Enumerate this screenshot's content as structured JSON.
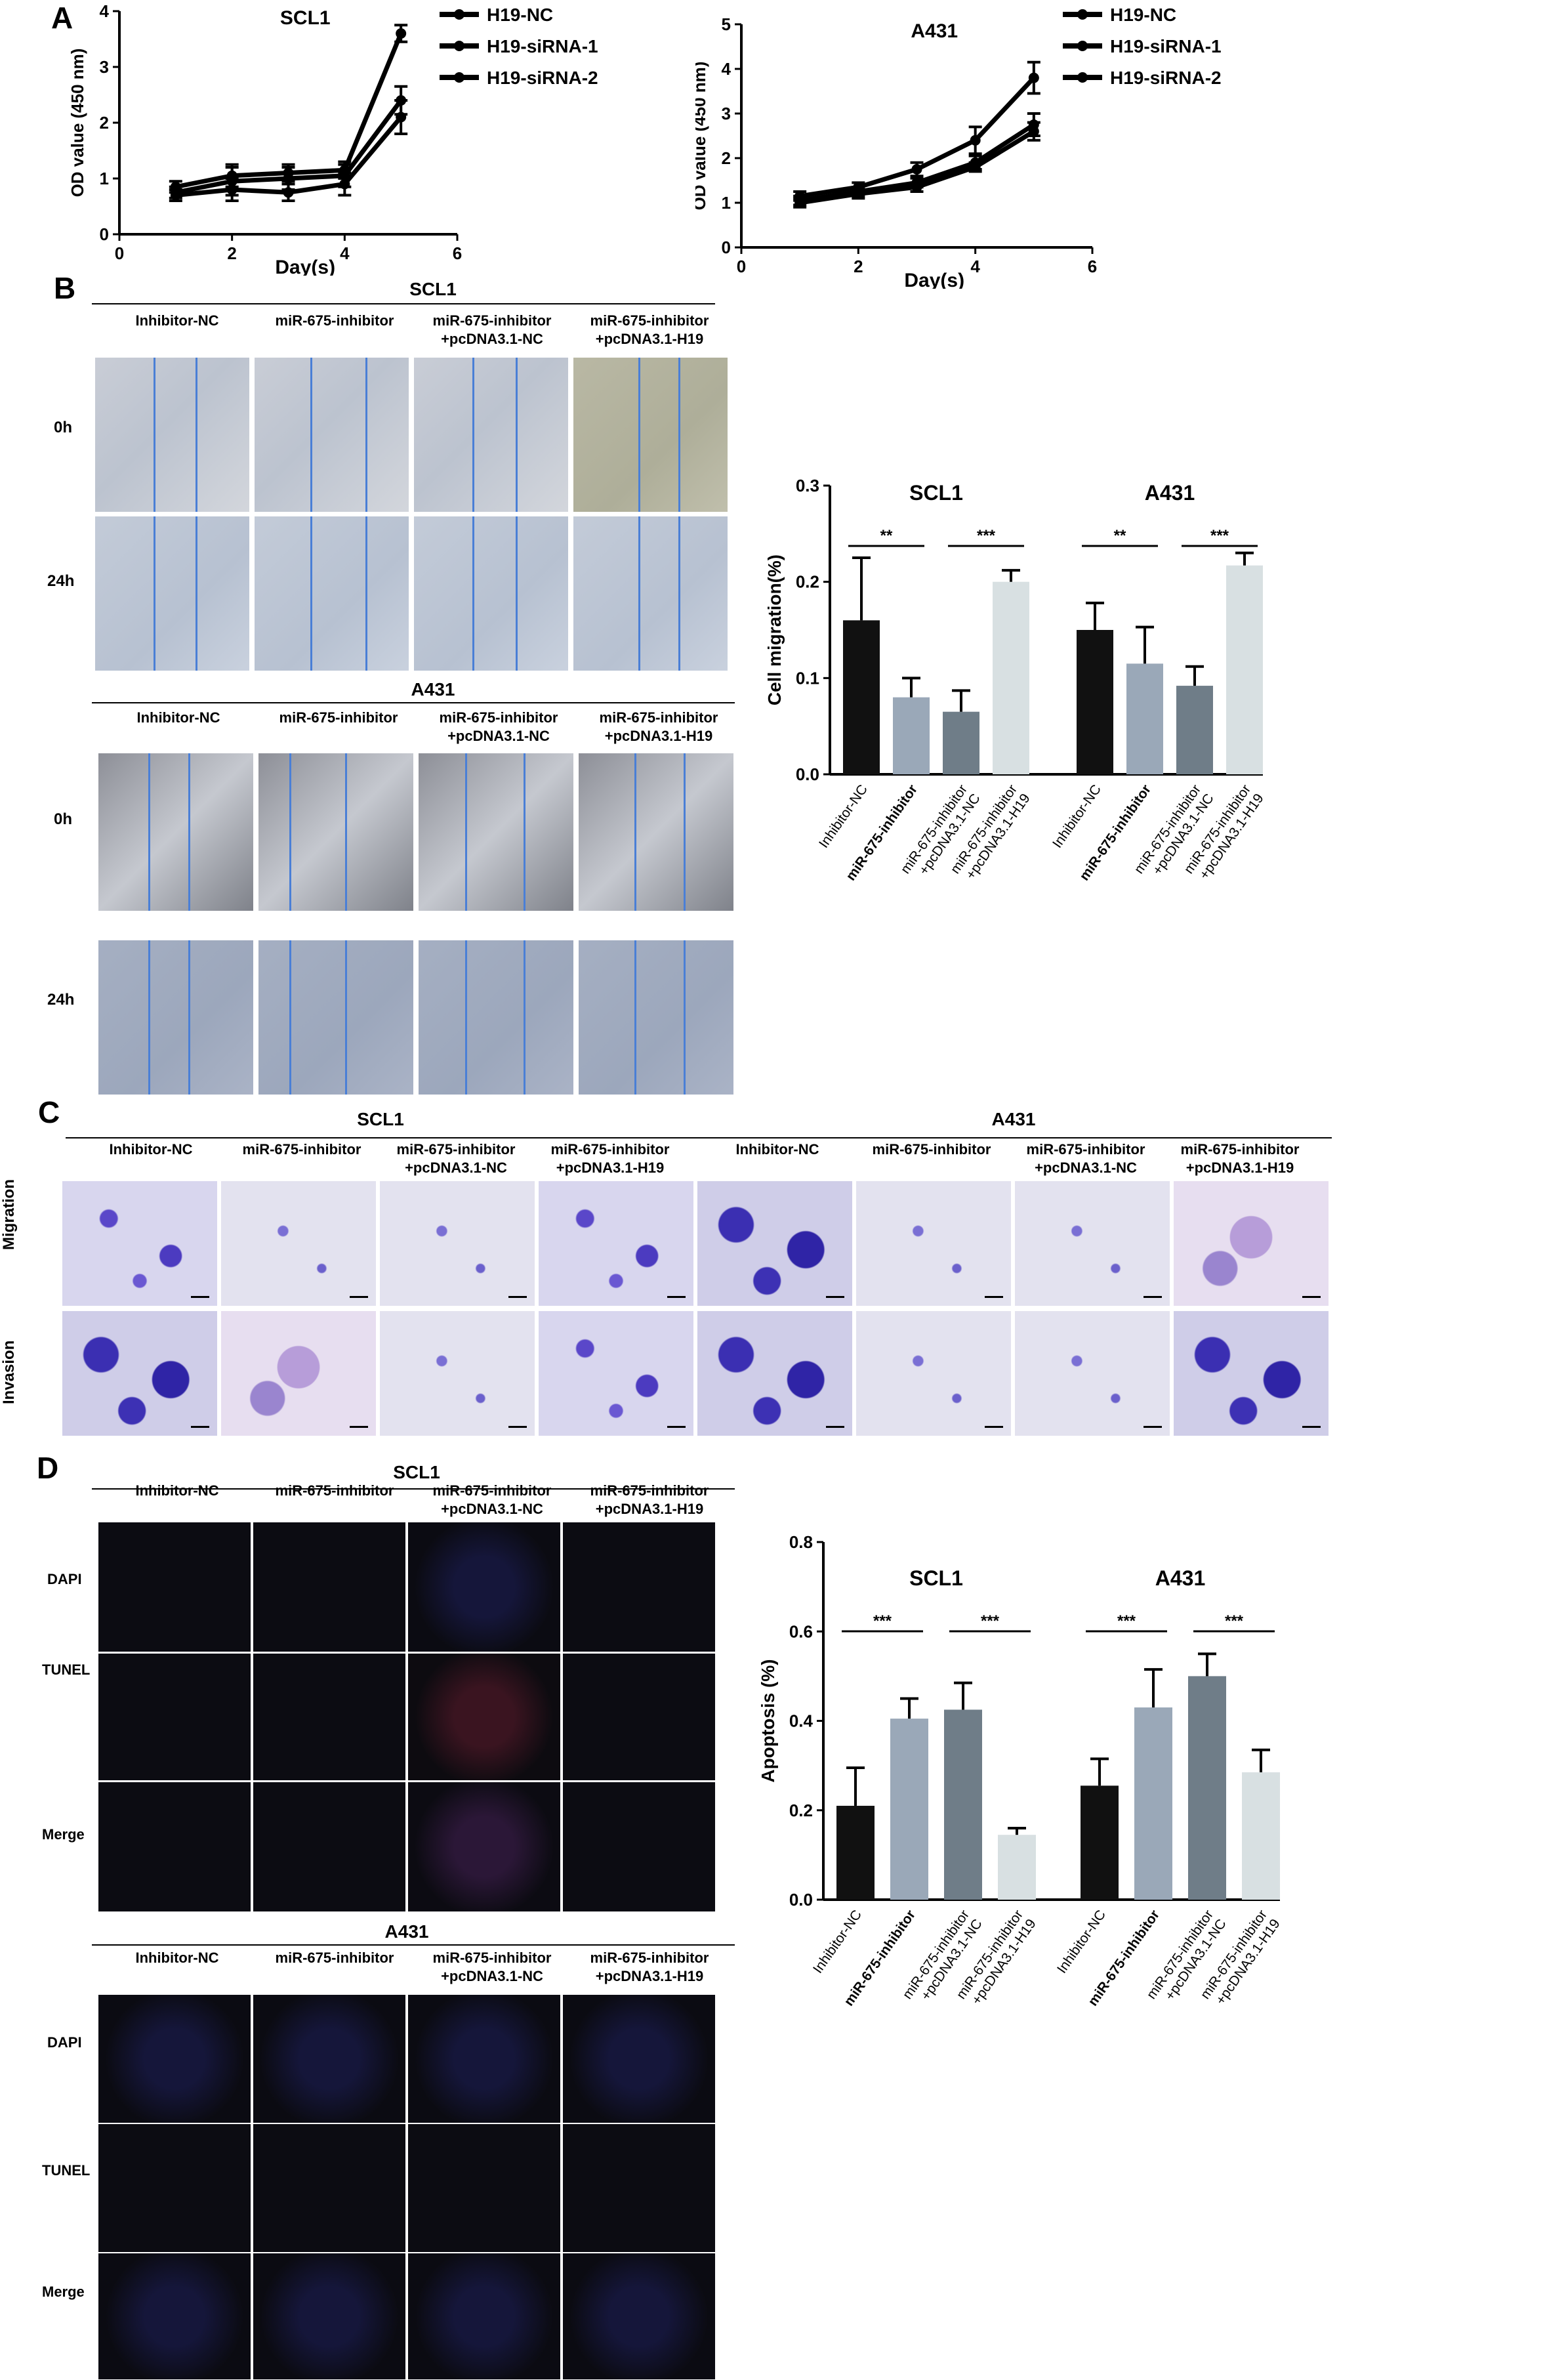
{
  "panels": {
    "a": "A",
    "b": "B",
    "c": "C",
    "d": "D"
  },
  "panelA": {
    "charts": [
      {
        "title": "SCL1",
        "xlabel": "Day(s)",
        "ylabel": "OD value (450 nm)",
        "xlim": [
          0,
          6
        ],
        "ylim": [
          0,
          4
        ],
        "xticks": [
          0,
          2,
          4,
          6
        ],
        "yticks": [
          0,
          1,
          2,
          3,
          4
        ],
        "legend": [
          "H19-NC",
          "H19-siRNA-1",
          "H19-siRNA-2"
        ]
      },
      {
        "title": "A431",
        "xlabel": "Day(s)",
        "ylabel": "OD value (450 nm)",
        "xlim": [
          0,
          6
        ],
        "ylim": [
          0,
          5
        ],
        "xticks": [
          0,
          2,
          4,
          6
        ],
        "yticks": [
          0,
          1,
          2,
          3,
          4,
          5
        ],
        "legend": [
          "H19-NC",
          "H19-siRNA-1",
          "H19-siRNA-2"
        ]
      }
    ]
  },
  "panelB": {
    "scl1": "SCL1",
    "a431": "A431",
    "conditions": [
      "Inhibitor-NC",
      "miR-675-inhibitor",
      "miR-675-inhibitor\n+pcDNA3.1-NC",
      "miR-675-inhibitor\n+pcDNA3.1-H19"
    ],
    "rows": [
      "0h",
      "24h"
    ]
  },
  "panelC": {
    "scl1": "SCL1",
    "a431": "A431",
    "conditions": [
      "Inhibitor-NC",
      "miR-675-inhibitor",
      "miR-675-inhibitor\n+pcDNA3.1-NC",
      "miR-675-inhibitor\n+pcDNA3.1-H19"
    ],
    "rows": [
      "Migration",
      "Invasion"
    ]
  },
  "panelD": {
    "scl1": "SCL1",
    "a431": "A431",
    "conditions": [
      "Inhibitor-NC",
      "miR-675-inhibitor",
      "miR-675-inhibitor\n+pcDNA3.1-NC",
      "miR-675-inhibitor\n+pcDNA3.1-H19"
    ],
    "rows": [
      "DAPI",
      "TUNEL",
      "Merge"
    ]
  },
  "bar_categories": [
    "Inhibitor-NC",
    "miR-675-inhibitor",
    "miR-675-inhibitor\n+pcDNA3.1-NC",
    "miR-675-inhibitor\n+pcDNA3.1-H19"
  ],
  "chart_data": [
    {
      "type": "line",
      "title": "SCL1",
      "xlabel": "Day(s)",
      "ylabel": "OD value (450 nm)",
      "x": [
        1,
        2,
        3,
        4,
        5
      ],
      "xlim": [
        0,
        6
      ],
      "ylim": [
        0,
        4
      ],
      "series": [
        {
          "name": "H19-NC",
          "values": [
            0.85,
            1.05,
            1.1,
            1.15,
            3.6
          ],
          "errors": [
            0.1,
            0.2,
            0.15,
            0.15,
            0.15
          ]
        },
        {
          "name": "H19-siRNA-1",
          "values": [
            0.75,
            0.95,
            1.0,
            1.05,
            2.4
          ],
          "errors": [
            0.1,
            0.25,
            0.2,
            0.2,
            0.25
          ]
        },
        {
          "name": "H19-siRNA-2",
          "values": [
            0.7,
            0.8,
            0.75,
            0.9,
            2.1
          ],
          "errors": [
            0.1,
            0.2,
            0.15,
            0.2,
            0.3
          ]
        }
      ],
      "legend_position": "top-right"
    },
    {
      "type": "line",
      "title": "A431",
      "xlabel": "Day(s)",
      "ylabel": "OD value (450 nm)",
      "x": [
        1,
        2,
        3,
        4,
        5
      ],
      "xlim": [
        0,
        6
      ],
      "ylim": [
        0,
        5
      ],
      "series": [
        {
          "name": "H19-NC",
          "values": [
            1.15,
            1.35,
            1.75,
            2.4,
            3.8
          ],
          "errors": [
            0.1,
            0.1,
            0.15,
            0.3,
            0.35
          ]
        },
        {
          "name": "H19-siRNA-1",
          "values": [
            1.05,
            1.25,
            1.45,
            1.9,
            2.75
          ],
          "errors": [
            0.1,
            0.1,
            0.1,
            0.15,
            0.25
          ]
        },
        {
          "name": "H19-siRNA-2",
          "values": [
            1.0,
            1.2,
            1.35,
            1.8,
            2.6
          ],
          "errors": [
            0.1,
            0.1,
            0.1,
            0.1,
            0.2
          ]
        }
      ],
      "legend_position": "top-right"
    },
    {
      "type": "bar",
      "ylabel": "Cell migration(%)",
      "ylim": [
        0,
        0.3
      ],
      "yticks": [
        0.0,
        0.1,
        0.2,
        0.3
      ],
      "groups": [
        {
          "name": "SCL1",
          "values": [
            0.16,
            0.08,
            0.065,
            0.2
          ],
          "errors": [
            0.065,
            0.02,
            0.022,
            0.012
          ],
          "significance": [
            {
              "pair": [
                0,
                1
              ],
              "label": "**"
            },
            {
              "pair": [
                2,
                3
              ],
              "label": "***"
            }
          ]
        },
        {
          "name": "A431",
          "values": [
            0.15,
            0.115,
            0.092,
            0.217
          ],
          "errors": [
            0.028,
            0.038,
            0.02,
            0.013
          ],
          "significance": [
            {
              "pair": [
                0,
                1
              ],
              "label": "**"
            },
            {
              "pair": [
                2,
                3
              ],
              "label": "***"
            }
          ]
        }
      ]
    },
    {
      "type": "bar",
      "ylabel": "Apoptosis (%)",
      "ylim": [
        0,
        0.8
      ],
      "yticks": [
        0.0,
        0.2,
        0.4,
        0.6,
        0.8
      ],
      "groups": [
        {
          "name": "SCL1",
          "values": [
            0.21,
            0.405,
            0.425,
            0.145
          ],
          "errors": [
            0.085,
            0.045,
            0.06,
            0.015
          ],
          "significance": [
            {
              "pair": [
                0,
                1
              ],
              "label": "***"
            },
            {
              "pair": [
                2,
                3
              ],
              "label": "***"
            }
          ]
        },
        {
          "name": "A431",
          "values": [
            0.255,
            0.43,
            0.5,
            0.285
          ],
          "errors": [
            0.06,
            0.085,
            0.05,
            0.05
          ],
          "significance": [
            {
              "pair": [
                0,
                1
              ],
              "label": "***"
            },
            {
              "pair": [
                2,
                3
              ],
              "label": "***"
            }
          ]
        }
      ]
    }
  ],
  "colors": {
    "bar1": "#111111",
    "bar2": "#9aa8b8",
    "bar3": "#6f7d88",
    "bar4": "#d8e0e2",
    "line": "#000000"
  }
}
